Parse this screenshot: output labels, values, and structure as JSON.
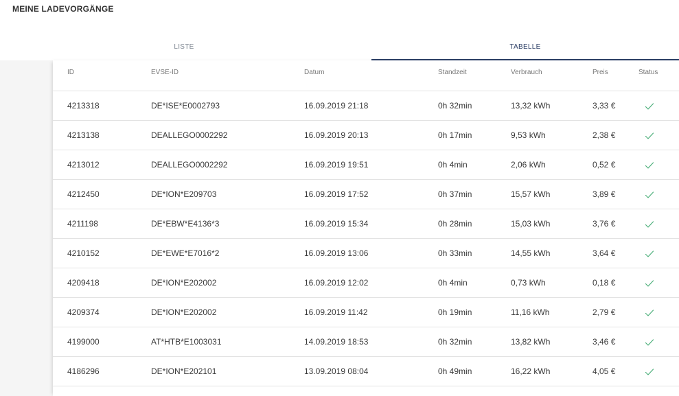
{
  "page": {
    "title": "MEINE LADEVORGÄNGE"
  },
  "tabs": [
    {
      "label": "LISTE",
      "active": false
    },
    {
      "label": "TABELLE",
      "active": true
    }
  ],
  "colors": {
    "accent": "#2c3f66",
    "status_ok": "#4caf7a"
  },
  "table": {
    "headers": {
      "id": "ID",
      "evse": "EVSE-ID",
      "datum": "Datum",
      "standzeit": "Standzeit",
      "verbrauch": "Verbrauch",
      "preis": "Preis",
      "status": "Status"
    },
    "rows": [
      {
        "id": "4213318",
        "evse": "DE*ISE*E0002793",
        "datum": "16.09.2019 21:18",
        "standzeit": "0h 32min",
        "verbrauch": "13,32 kWh",
        "preis": "3,33 €",
        "status_icon": "check-icon"
      },
      {
        "id": "4213138",
        "evse": "DEALLEGO0002292",
        "datum": "16.09.2019 20:13",
        "standzeit": "0h 17min",
        "verbrauch": "9,53 kWh",
        "preis": "2,38 €",
        "status_icon": "check-icon"
      },
      {
        "id": "4213012",
        "evse": "DEALLEGO0002292",
        "datum": "16.09.2019 19:51",
        "standzeit": "0h 4min",
        "verbrauch": "2,06 kWh",
        "preis": "0,52 €",
        "status_icon": "check-icon"
      },
      {
        "id": "4212450",
        "evse": "DE*ION*E209703",
        "datum": "16.09.2019 17:52",
        "standzeit": "0h 37min",
        "verbrauch": "15,57 kWh",
        "preis": "3,89 €",
        "status_icon": "check-icon"
      },
      {
        "id": "4211198",
        "evse": "DE*EBW*E4136*3",
        "datum": "16.09.2019 15:34",
        "standzeit": "0h 28min",
        "verbrauch": "15,03 kWh",
        "preis": "3,76 €",
        "status_icon": "check-icon"
      },
      {
        "id": "4210152",
        "evse": "DE*EWE*E7016*2",
        "datum": "16.09.2019 13:06",
        "standzeit": "0h 33min",
        "verbrauch": "14,55 kWh",
        "preis": "3,64 €",
        "status_icon": "check-icon"
      },
      {
        "id": "4209418",
        "evse": "DE*ION*E202002",
        "datum": "16.09.2019 12:02",
        "standzeit": "0h 4min",
        "verbrauch": "0,73 kWh",
        "preis": "0,18 €",
        "status_icon": "check-icon"
      },
      {
        "id": "4209374",
        "evse": "DE*ION*E202002",
        "datum": "16.09.2019 11:42",
        "standzeit": "0h 19min",
        "verbrauch": "11,16 kWh",
        "preis": "2,79 €",
        "status_icon": "check-icon"
      },
      {
        "id": "4199000",
        "evse": "AT*HTB*E1003031",
        "datum": "14.09.2019 18:53",
        "standzeit": "0h 32min",
        "verbrauch": "13,82 kWh",
        "preis": "3,46 €",
        "status_icon": "check-icon"
      },
      {
        "id": "4186296",
        "evse": "DE*ION*E202101",
        "datum": "13.09.2019 08:04",
        "standzeit": "0h 49min",
        "verbrauch": "16,22 kWh",
        "preis": "4,05 €",
        "status_icon": "check-icon"
      }
    ]
  }
}
